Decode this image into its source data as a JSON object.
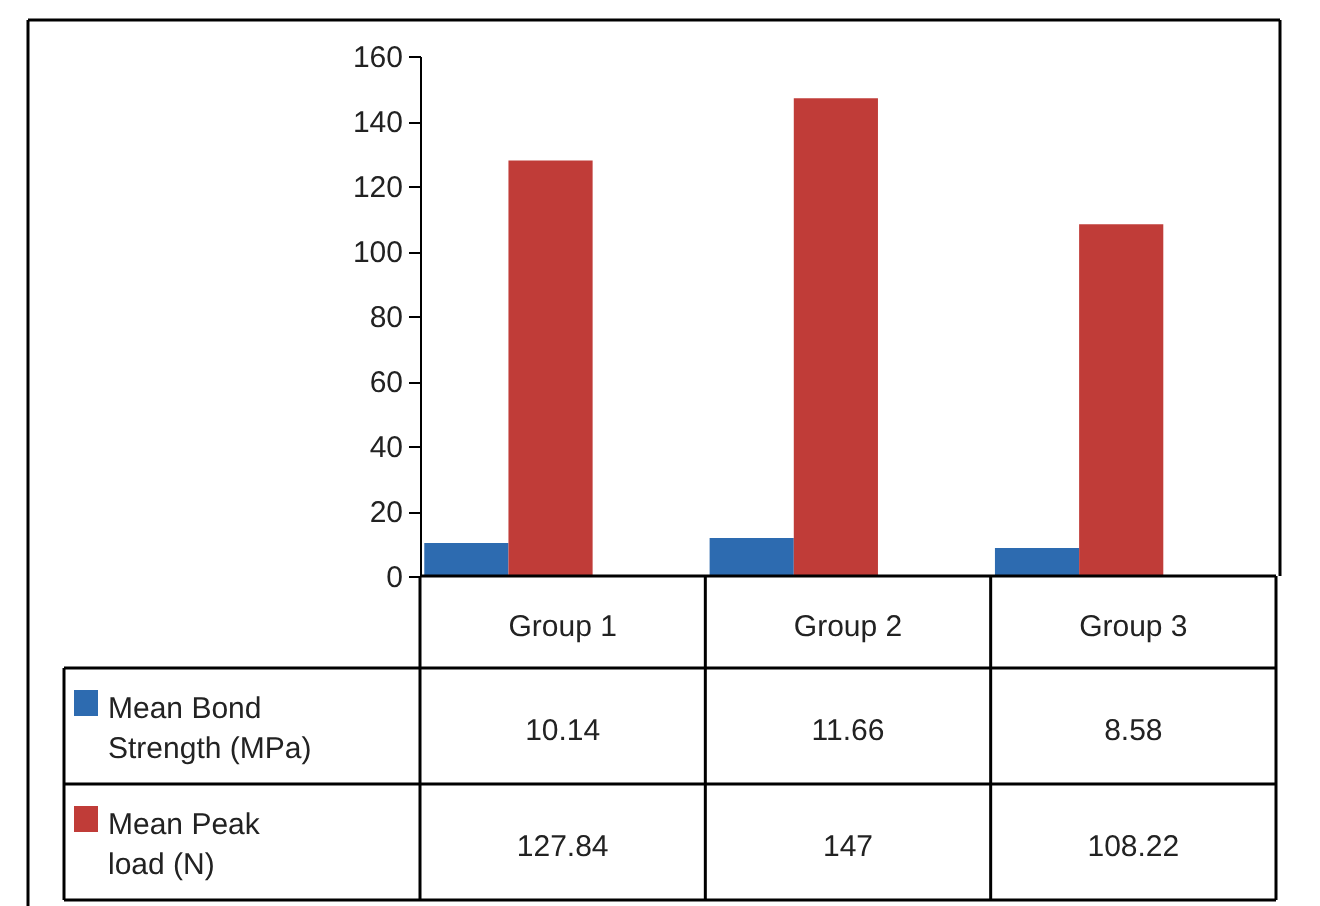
{
  "chart_data": {
    "type": "bar",
    "categories": [
      "Group 1",
      "Group 2",
      "Group 3"
    ],
    "series": [
      {
        "name": "Mean Bond Strength  (MPa)",
        "color": "#2d6bb0",
        "values": [
          10.14,
          11.66,
          8.58
        ]
      },
      {
        "name": "Mean Peak load (N)",
        "color": "#c03c38",
        "values": [
          127.84,
          147,
          108.22
        ]
      }
    ],
    "ylim": [
      0,
      160
    ],
    "yticks": [
      0,
      20,
      40,
      60,
      80,
      100,
      120,
      140,
      160
    ],
    "grid": false,
    "legend": "bottom left",
    "data_labels": true
  }
}
